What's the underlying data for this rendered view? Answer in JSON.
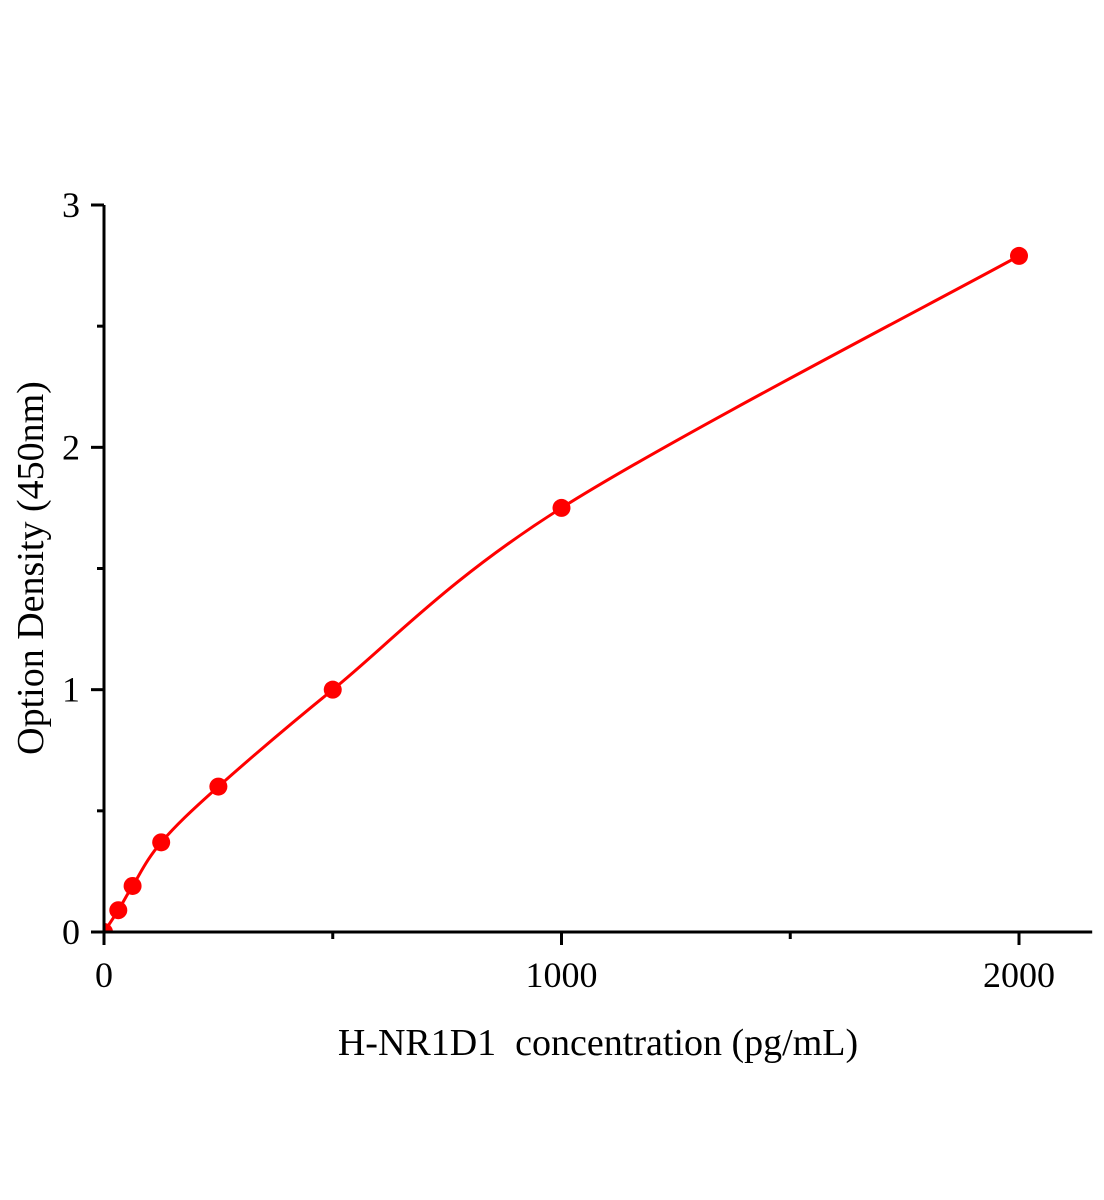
{
  "chart_data": {
    "type": "scatter",
    "title": "",
    "xlabel": "H-NR1D1  concentration (pg/mL)",
    "ylabel": "Option Density (450nm)",
    "xlim": [
      0,
      2160
    ],
    "ylim": [
      0,
      3
    ],
    "x_ticks": [
      0,
      1000,
      2000
    ],
    "x_tick_labels": [
      "0",
      "1000",
      "2000"
    ],
    "x_minor_ticks": [
      500,
      1500
    ],
    "y_ticks": [
      0,
      1,
      2,
      3
    ],
    "y_tick_labels": [
      "0",
      "1",
      "2",
      "3"
    ],
    "y_minor_ticks": [
      0.5,
      1.5,
      2.5
    ],
    "grid": false,
    "legend": "none",
    "color": "#ff0000",
    "series": [
      {
        "x": [
          0,
          31.25,
          62.5,
          125,
          250,
          500,
          1000,
          2000
        ],
        "y": [
          0.0,
          0.09,
          0.19,
          0.37,
          0.6,
          1.0,
          1.75,
          2.79
        ],
        "fit_line": true
      }
    ]
  }
}
